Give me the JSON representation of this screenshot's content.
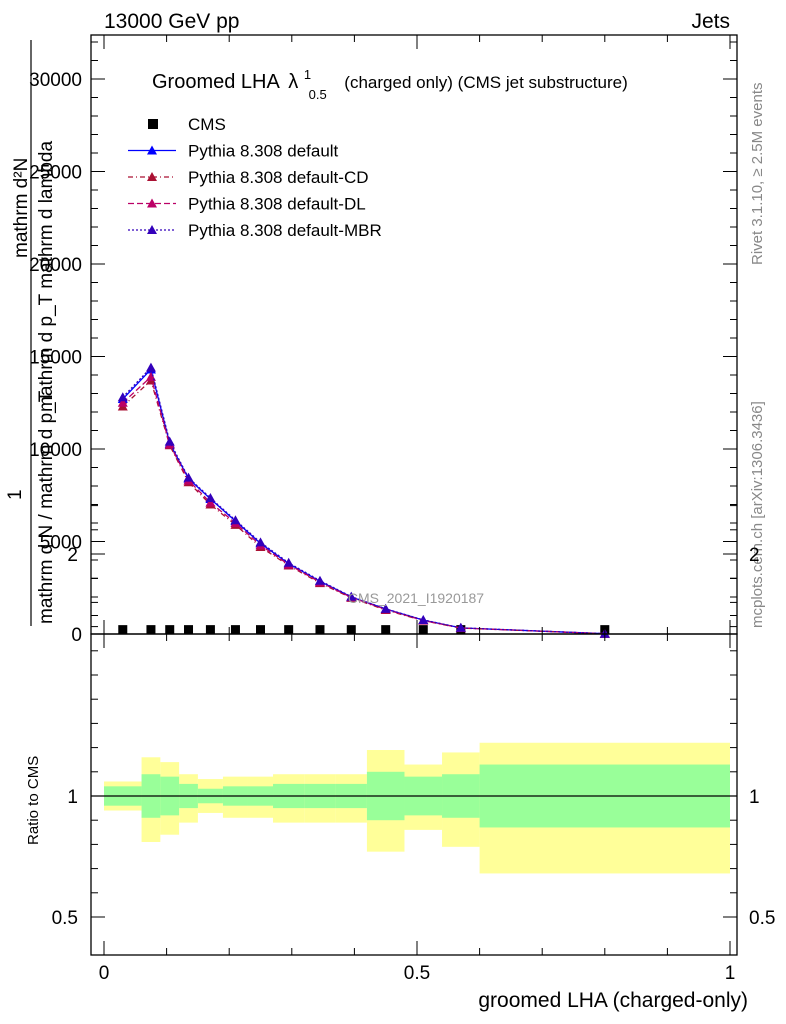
{
  "header": {
    "left": "13000 GeV pp",
    "right": "Jets"
  },
  "side_labels": {
    "rivet": "Rivet 3.1.10, ≥ 2.5M events",
    "mcplots": "mcplots.cern.ch [arXiv:1306.3436]"
  },
  "main_plot": {
    "title_main": "Groomed LHA",
    "title_lambda": "λ",
    "title_sup": "1",
    "title_sub": "0.5",
    "title_rest": "(charged only) (CMS jet substructure)",
    "ylabel_top": "mathrm d²N",
    "ylabel_mid": "mathrm d p_T mathrm d lambda",
    "ylabel_frac1": "1",
    "ylabel_frac2": "mathrm d N / mathrm d p_T",
    "watermark": "CMS_2021_I1920187"
  },
  "ratio_plot": {
    "ylabel": "Ratio to CMS",
    "xlabel": "groomed LHA (charged-only)"
  },
  "legend": [
    {
      "label": "CMS",
      "color": "#000000",
      "marker": "square",
      "dash": ""
    },
    {
      "label": "Pythia 8.308 default",
      "color": "#0000ff",
      "marker": "triangle",
      "dash": ""
    },
    {
      "label": "Pythia 8.308 default-CD",
      "color": "#aa1133",
      "marker": "triangle",
      "dash": "5,3,1,3"
    },
    {
      "label": "Pythia 8.308 default-DL",
      "color": "#bb0066",
      "marker": "triangle",
      "dash": "6,3"
    },
    {
      "label": "Pythia 8.308 default-MBR",
      "color": "#3300bb",
      "marker": "triangle",
      "dash": "2,2"
    }
  ],
  "chart_data": {
    "type": "line",
    "xlim": [
      -0.03,
      1.02
    ],
    "ylim_main": [
      0,
      32000
    ],
    "ylim_ratio": [
      0.4,
      2.3
    ],
    "x_ticks": [
      0,
      0.5,
      1
    ],
    "x_tick_labels": [
      "0",
      "0.5",
      "1"
    ],
    "y_ticks_main": [
      0,
      5000,
      10000,
      15000,
      20000,
      25000,
      30000
    ],
    "y_tick_labels_main": [
      "0",
      "5000",
      "10000",
      "15000",
      "20000",
      "25000",
      "30000"
    ],
    "y_ticks_ratio": [
      0.5,
      1,
      2
    ],
    "y_tick_labels_ratio": [
      "0.5",
      "1",
      "2"
    ],
    "bin_edges": [
      0,
      0.06,
      0.09,
      0.12,
      0.15,
      0.19,
      0.23,
      0.27,
      0.32,
      0.37,
      0.42,
      0.48,
      0.54,
      0.6,
      1.0
    ],
    "x": [
      0.03,
      0.075,
      0.105,
      0.135,
      0.17,
      0.21,
      0.25,
      0.295,
      0.345,
      0.395,
      0.45,
      0.51,
      0.57,
      0.8
    ],
    "series": [
      {
        "name": "CMS",
        "values": [
          20,
          20,
          20,
          20,
          20,
          20,
          20,
          20,
          20,
          20,
          20,
          20,
          20,
          20
        ]
      },
      {
        "name": "Pythia 8.308 default",
        "values": [
          12700,
          14300,
          10300,
          8400,
          7300,
          6100,
          4900,
          3800,
          2850,
          2000,
          1350,
          750,
          330,
          15
        ]
      },
      {
        "name": "Pythia 8.308 default-CD",
        "values": [
          12300,
          13700,
          10200,
          8200,
          7000,
          5900,
          4700,
          3700,
          2750,
          1950,
          1300,
          720,
          320,
          15
        ]
      },
      {
        "name": "Pythia 8.308 default-DL",
        "values": [
          12500,
          13900,
          10250,
          8300,
          7100,
          6000,
          4800,
          3750,
          2800,
          1980,
          1330,
          730,
          325,
          15
        ]
      },
      {
        "name": "Pythia 8.308 default-MBR",
        "values": [
          12800,
          14400,
          10400,
          8450,
          7350,
          6150,
          4950,
          3850,
          2880,
          2020,
          1360,
          760,
          335,
          15
        ]
      }
    ],
    "ratio_bands": {
      "stat_lo": [
        0.96,
        0.91,
        0.92,
        0.95,
        0.97,
        0.96,
        0.96,
        0.95,
        0.95,
        0.95,
        0.9,
        0.92,
        0.91,
        0.87
      ],
      "stat_hi": [
        1.04,
        1.09,
        1.08,
        1.05,
        1.03,
        1.04,
        1.04,
        1.05,
        1.05,
        1.05,
        1.1,
        1.08,
        1.09,
        1.13
      ],
      "syst_lo": [
        0.94,
        0.81,
        0.84,
        0.89,
        0.93,
        0.91,
        0.91,
        0.89,
        0.89,
        0.89,
        0.77,
        0.86,
        0.79,
        0.68
      ],
      "syst_hi": [
        1.06,
        1.16,
        1.14,
        1.09,
        1.07,
        1.08,
        1.08,
        1.09,
        1.09,
        1.09,
        1.19,
        1.13,
        1.18,
        1.22
      ]
    },
    "band_colors": {
      "stat": "#99ff99",
      "syst": "#ffff99"
    }
  }
}
